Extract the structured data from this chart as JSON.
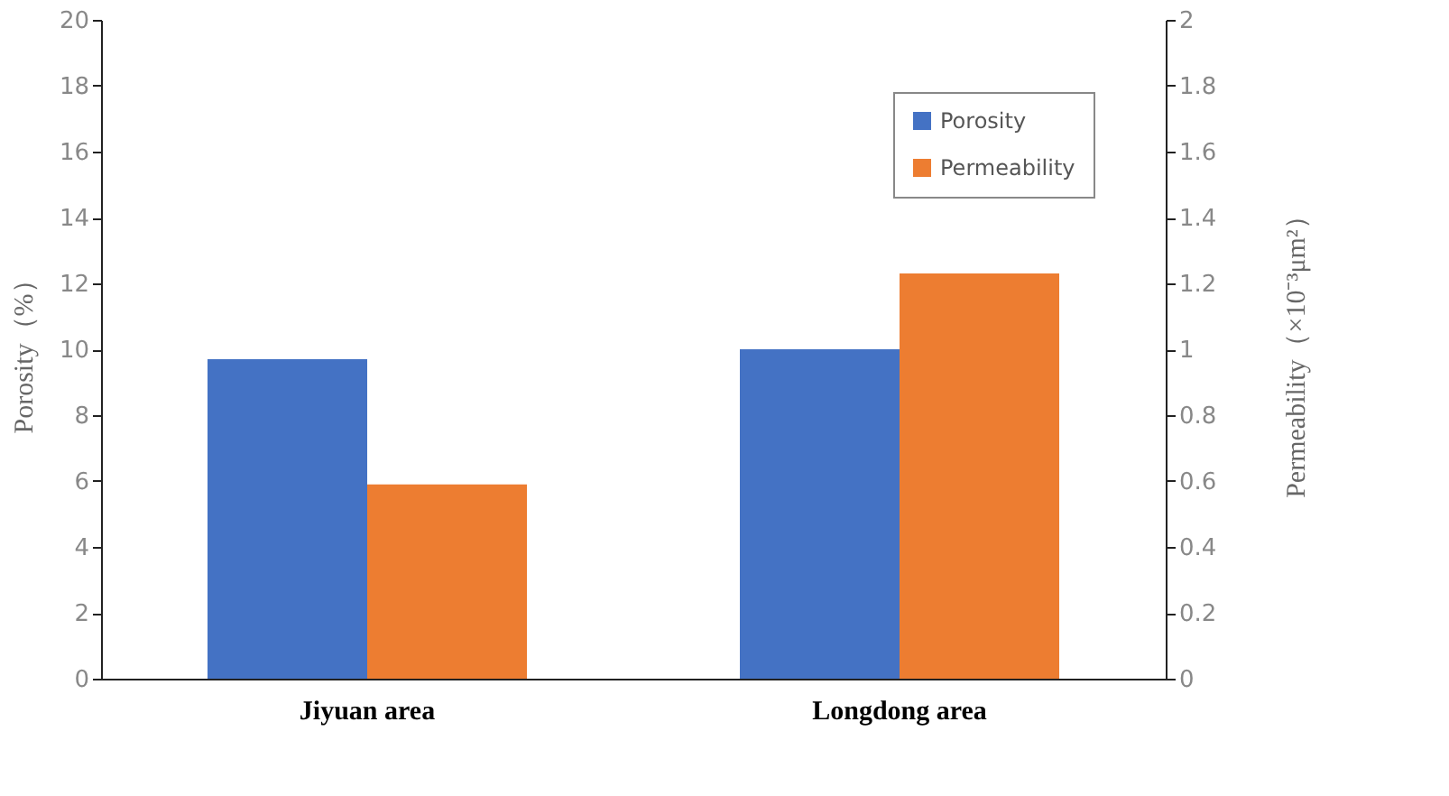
{
  "chart_data": {
    "type": "bar",
    "categories": [
      "Jiyuan area",
      "Longdong area"
    ],
    "series": [
      {
        "name": "Porosity",
        "color": "#4472c4",
        "values": [
          9.7,
          10.0
        ]
      },
      {
        "name": "Permeability",
        "color": "#ed7d31",
        "values": [
          0.59,
          1.23
        ],
        "axis": "y2"
      }
    ],
    "ylabel": "Porosity（%）",
    "y2label": "Permeability（×10⁻³μm²）",
    "ylim": [
      0,
      20
    ],
    "yticks": [
      0,
      2,
      4,
      6,
      8,
      10,
      12,
      14,
      16,
      18,
      20
    ],
    "y2lim": [
      0,
      2
    ],
    "y2ticks": [
      0,
      0.2,
      0.4,
      0.6,
      0.8,
      1,
      1.2,
      1.4,
      1.6,
      1.8,
      2
    ],
    "legend": "top right",
    "grid": false
  }
}
